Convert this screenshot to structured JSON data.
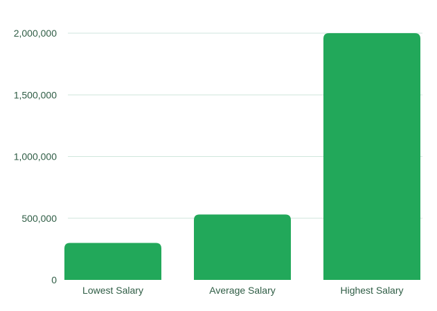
{
  "chart_data": {
    "type": "bar",
    "categories": [
      "Lowest Salary",
      "Average Salary",
      "Highest Salary"
    ],
    "values": [
      300000,
      530000,
      2000000
    ],
    "ylim": [
      0,
      2000000
    ],
    "yticks": [
      0,
      500000,
      1000000,
      1500000,
      2000000
    ],
    "ytick_labels": [
      "0",
      "500,000",
      "1,000,000",
      "1,500,000",
      "2,000,000"
    ],
    "grid": true,
    "legend": "none",
    "colors": {
      "bar": "#22a85a",
      "grid": "#cfe6dc",
      "text": "#2f5d45"
    }
  }
}
